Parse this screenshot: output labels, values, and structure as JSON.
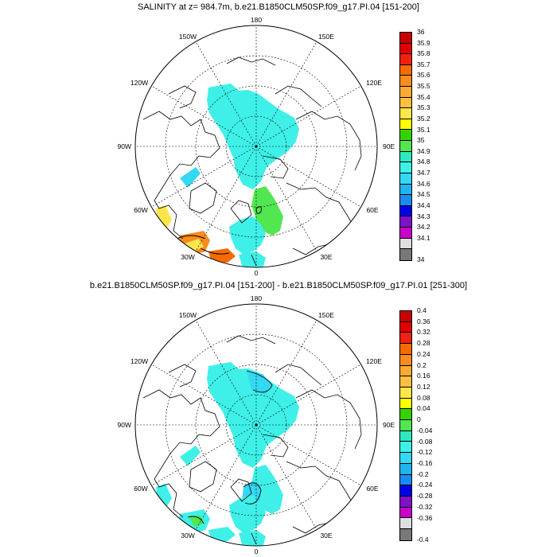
{
  "panels": [
    {
      "title": "SALINITY at z= 984.7m, b.e21.B1850CLM50SP.f09_g17.PI.04 [151-200]",
      "lon_labels": {
        "180": "180",
        "150W": "150W",
        "150E": "150E",
        "120W": "120W",
        "120E": "120E",
        "90W": "90W",
        "90E": "90E",
        "60W": "60W",
        "60E": "60E",
        "30W": "30W",
        "30E": "30E",
        "0": "0"
      },
      "colorbar": {
        "labels": [
          "36",
          "35.9",
          "35.8",
          "35.7",
          "35.6",
          "35.5",
          "35.4",
          "35.3",
          "35.2",
          "35.1",
          "35",
          "34.9",
          "34.8",
          "34.7",
          "34.6",
          "34.5",
          "34.4",
          "34.3",
          "34.2",
          "34.1",
          "34"
        ],
        "colors": [
          "#c80000",
          "#e00000",
          "#f22010",
          "#f56b00",
          "#f88c20",
          "#fba835",
          "#fcbf40",
          "#fde64a",
          "#ffff00",
          "#34d300",
          "#52e650",
          "#2fe8c0",
          "#3ff0e8",
          "#35d8f2",
          "#1fb4ee",
          "#1a8cf0",
          "#0000e8",
          "#7d12c9",
          "#c800c8",
          "#dedede",
          "#787878"
        ]
      }
    },
    {
      "title": "b.e21.B1850CLM50SP.f09_g17.PI.04 [151-200] - b.e21.B1850CLM50SP.f09_g17.PI.01 [251-300]",
      "lon_labels": {
        "180": "180",
        "150W": "150W",
        "150E": "150E",
        "120W": "120W",
        "120E": "120E",
        "90W": "90W",
        "90E": "90E",
        "60W": "60W",
        "60E": "60E",
        "30W": "30W",
        "30E": "30E",
        "0": "0"
      },
      "colorbar": {
        "labels": [
          "0.4",
          "0.36",
          "0.32",
          "0.28",
          "0.24",
          "0.2",
          "0.16",
          "0.12",
          "0.08",
          "0.04",
          "0",
          "-0.04",
          "-0.08",
          "-0.12",
          "-0.16",
          "-0.2",
          "-0.24",
          "-0.28",
          "-0.32",
          "-0.36",
          "-0.4"
        ],
        "colors": [
          "#c80000",
          "#e00000",
          "#f22010",
          "#f56b00",
          "#f88c20",
          "#fba835",
          "#fcbf40",
          "#fde64a",
          "#ffff00",
          "#34d300",
          "#52e650",
          "#2fe8c0",
          "#3ff0e8",
          "#35d8f2",
          "#1fb4ee",
          "#1a8cf0",
          "#0000e8",
          "#7d12c9",
          "#c800c8",
          "#dedede",
          "#787878"
        ]
      }
    }
  ]
}
